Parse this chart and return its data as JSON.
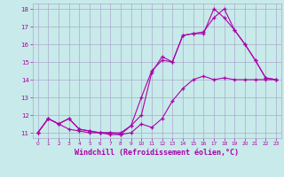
{
  "background_color": "#c8eaea",
  "grid_color": "#aaaacc",
  "line_color": "#aa00aa",
  "marker": "+",
  "xlim": [
    -0.5,
    23.5
  ],
  "ylim": [
    10.7,
    18.3
  ],
  "xlabel": "Windchill (Refroidissement éolien,°C)",
  "xlabel_fontsize": 6.0,
  "yticks": [
    11,
    12,
    13,
    14,
    15,
    16,
    17,
    18
  ],
  "xticks": [
    0,
    1,
    2,
    3,
    4,
    5,
    6,
    7,
    8,
    9,
    10,
    11,
    12,
    13,
    14,
    15,
    16,
    17,
    18,
    19,
    20,
    21,
    22,
    23
  ],
  "line1_x": [
    0,
    1,
    2,
    3,
    4,
    5,
    6,
    7,
    8,
    9,
    10,
    11,
    12,
    13,
    14,
    15,
    16,
    17,
    18,
    19,
    20,
    21,
    22,
    23
  ],
  "line1_y": [
    11.0,
    11.8,
    11.5,
    11.8,
    11.2,
    11.1,
    11.0,
    11.0,
    11.0,
    11.4,
    12.0,
    14.4,
    15.3,
    15.0,
    16.5,
    16.6,
    16.7,
    17.5,
    18.0,
    16.8,
    16.0,
    15.1,
    14.1,
    14.0
  ],
  "line2_x": [
    0,
    1,
    2,
    3,
    4,
    5,
    6,
    7,
    8,
    9,
    10,
    11,
    12,
    13,
    14,
    15,
    16,
    17,
    18,
    19,
    20,
    21,
    22,
    23
  ],
  "line2_y": [
    11.0,
    11.8,
    11.5,
    11.8,
    11.2,
    11.1,
    11.0,
    11.0,
    10.9,
    11.4,
    13.0,
    14.5,
    15.1,
    15.0,
    16.5,
    16.6,
    16.6,
    18.0,
    17.5,
    16.8,
    16.0,
    15.1,
    14.1,
    14.0
  ],
  "line3_x": [
    0,
    1,
    2,
    3,
    4,
    5,
    6,
    7,
    8,
    9,
    10,
    11,
    12,
    13,
    14,
    15,
    16,
    17,
    18,
    19,
    20,
    21,
    22,
    23
  ],
  "line3_y": [
    11.0,
    11.8,
    11.5,
    11.2,
    11.1,
    11.0,
    11.0,
    10.9,
    10.9,
    11.0,
    11.5,
    11.3,
    11.8,
    12.8,
    13.5,
    14.0,
    14.2,
    14.0,
    14.1,
    14.0,
    14.0,
    14.0,
    14.0,
    14.0
  ]
}
